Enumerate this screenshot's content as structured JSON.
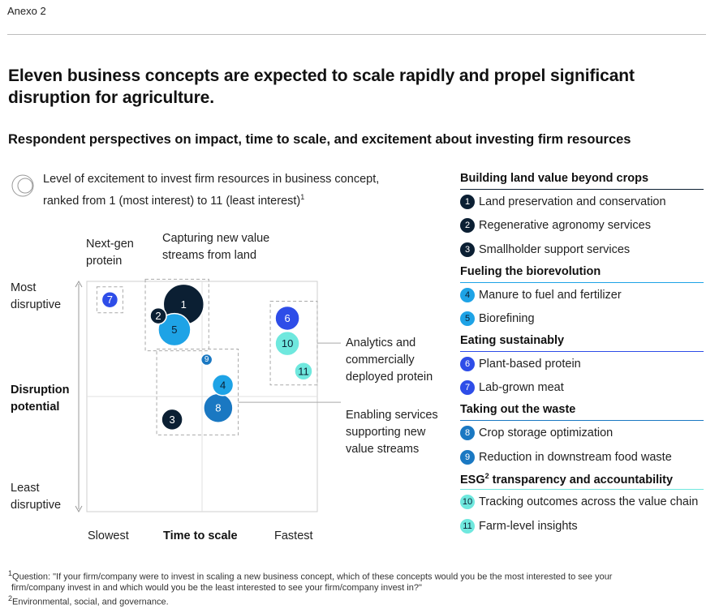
{
  "exhibit_label": "Anexo 2",
  "title": "Eleven business concepts are expected to scale rapidly and propel significant disruption for agriculture.",
  "subtitle": "Respondent perspectives on impact, time to scale, and excitement about investing firm resources",
  "legend": {
    "line1": "Level of excitement to invest firm resources in business concept,",
    "line2": "ranked from 1 (most interest) to 11 (least interest)",
    "footnote_mark": "1"
  },
  "colors": {
    "dark_navy": "#0b1f33",
    "sky_blue": "#1ea3e6",
    "royal_blue": "#2e4de8",
    "mid_blue": "#1a78c2",
    "light_teal": "#6fe8de",
    "group_building": "#0b1f33",
    "group_fueling": "#1ea3e6",
    "group_eating": "#2e4de8",
    "group_waste": "#1a78c2",
    "group_esg": "#6fe8de"
  },
  "axis_labels": {
    "y_top_1": "Most",
    "y_top_2": "disruptive",
    "y_mid_1": "Disruption",
    "y_mid_2": "potential",
    "y_bottom_1": "Least",
    "y_bottom_2": "disruptive",
    "x_left": "Slowest",
    "x_mid": "Time to scale",
    "x_right": "Fastest"
  },
  "callouts": {
    "next_gen_1": "Next-gen",
    "next_gen_2": "protein",
    "capturing_1": "Capturing new value",
    "capturing_2": "streams from land",
    "analytics_1": "Analytics and",
    "analytics_2": "commercially",
    "analytics_3": "deployed protein",
    "enabling_1": "Enabling services",
    "enabling_2": "supporting new",
    "enabling_3": "value streams"
  },
  "chart_data": {
    "type": "scatter",
    "xlabel": "Time to scale",
    "ylabel": "Disruption potential",
    "x_axis_labels": [
      "Slowest",
      "Time to scale",
      "Fastest"
    ],
    "y_axis_labels": [
      "Most disruptive",
      "Disruption potential",
      "Least disruptive"
    ],
    "size_encoding": "Level of excitement to invest firm resources in business concept, ranked from 1 (most interest) to 11 (least interest)",
    "points": [
      {
        "rank": "1",
        "x": 0.42,
        "y": 0.9,
        "r": 25,
        "color": "#0b1f33",
        "label_color": "#ffffff",
        "group": "Building land value beyond crops"
      },
      {
        "rank": "2",
        "x": 0.31,
        "y": 0.85,
        "r": 10,
        "color": "#0b1f33",
        "label_color": "#ffffff",
        "group": "Building land value beyond crops"
      },
      {
        "rank": "3",
        "x": 0.37,
        "y": 0.4,
        "r": 13,
        "color": "#0b1f33",
        "label_color": "#ffffff",
        "group": "Building land value beyond crops"
      },
      {
        "rank": "4",
        "x": 0.59,
        "y": 0.55,
        "r": 13,
        "color": "#1ea3e6",
        "label_color": "#0b1f33",
        "group": "Fueling the biorevolution"
      },
      {
        "rank": "5",
        "x": 0.38,
        "y": 0.79,
        "r": 20,
        "color": "#1ea3e6",
        "label_color": "#0b1f33",
        "group": "Fueling the biorevolution"
      },
      {
        "rank": "6",
        "x": 0.87,
        "y": 0.84,
        "r": 15,
        "color": "#2e4de8",
        "label_color": "#ffffff",
        "group": "Eating sustainably"
      },
      {
        "rank": "7",
        "x": 0.1,
        "y": 0.92,
        "r": 10,
        "color": "#2e4de8",
        "label_color": "#ffffff",
        "group": "Eating sustainably"
      },
      {
        "rank": "8",
        "x": 0.57,
        "y": 0.45,
        "r": 18,
        "color": "#1a78c2",
        "label_color": "#ffffff",
        "group": "Taking out the waste"
      },
      {
        "rank": "9",
        "x": 0.52,
        "y": 0.66,
        "r": 7,
        "color": "#1a78c2",
        "label_color": "#ffffff",
        "group": "Taking out the waste"
      },
      {
        "rank": "10",
        "x": 0.87,
        "y": 0.73,
        "r": 15,
        "color": "#6fe8de",
        "label_color": "#0b1f33",
        "group": "ESG transparency and accountability"
      },
      {
        "rank": "11",
        "x": 0.94,
        "y": 0.61,
        "r": 11,
        "color": "#6fe8de",
        "label_color": "#0b1f33",
        "group": "ESG transparency and accountability"
      }
    ],
    "groups_boxes": [
      {
        "name": "Next-gen protein",
        "members": [
          "7"
        ]
      },
      {
        "name": "Capturing new value streams from land",
        "members": [
          "1",
          "2",
          "5"
        ]
      },
      {
        "name": "Analytics and commercially deployed protein",
        "members": [
          "6",
          "10",
          "11"
        ]
      },
      {
        "name": "Enabling services supporting new value streams",
        "members": [
          "3",
          "4",
          "8",
          "9"
        ]
      }
    ]
  },
  "right_panel": [
    {
      "category": "Building land value beyond crops",
      "line_color": "#0b1f33",
      "items": [
        {
          "num": "1",
          "label": "Land preservation and conservation",
          "fill": "#0b1f33",
          "text": "#ffffff"
        },
        {
          "num": "2",
          "label": "Regenerative agronomy services",
          "fill": "#0b1f33",
          "text": "#ffffff"
        },
        {
          "num": "3",
          "label": "Smallholder support services",
          "fill": "#0b1f33",
          "text": "#ffffff"
        }
      ]
    },
    {
      "category": "Fueling the biorevolution",
      "line_color": "#1ea3e6",
      "items": [
        {
          "num": "4",
          "label": "Manure to fuel and fertilizer",
          "fill": "#1ea3e6",
          "text": "#0b1f33"
        },
        {
          "num": "5",
          "label": "Biorefining",
          "fill": "#1ea3e6",
          "text": "#0b1f33"
        }
      ]
    },
    {
      "category": "Eating sustainably",
      "line_color": "#2e4de8",
      "items": [
        {
          "num": "6",
          "label": "Plant-based protein",
          "fill": "#2e4de8",
          "text": "#ffffff"
        },
        {
          "num": "7",
          "label": "Lab-grown meat",
          "fill": "#2e4de8",
          "text": "#ffffff"
        }
      ]
    },
    {
      "category": "Taking out the waste",
      "line_color": "#1a78c2",
      "items": [
        {
          "num": "8",
          "label": "Crop storage optimization",
          "fill": "#1a78c2",
          "text": "#ffffff"
        },
        {
          "num": "9",
          "label": "Reduction in downstream food waste",
          "fill": "#1a78c2",
          "text": "#ffffff"
        }
      ]
    },
    {
      "category": "ESG",
      "category_sup": "2",
      "category_rest": " transparency and accountability",
      "line_color": "#6fe8de",
      "items": [
        {
          "num": "10",
          "label": "Tracking outcomes across the value chain",
          "fill": "#6fe8de",
          "text": "#0b1f33"
        },
        {
          "num": "11",
          "label": "Farm-level insights",
          "fill": "#6fe8de",
          "text": "#0b1f33"
        }
      ]
    }
  ],
  "footnotes": {
    "f1_mark": "1",
    "f1_line1": "Question: \"If your firm/company were to invest in scaling a new business concept, which of these concepts would you be the most interested to see your",
    "f1_line2": "firm/company invest in and which would you be the least interested to see your firm/company invest in?\"",
    "f2_mark": "2",
    "f2_text": "Environmental, social, and governance."
  }
}
